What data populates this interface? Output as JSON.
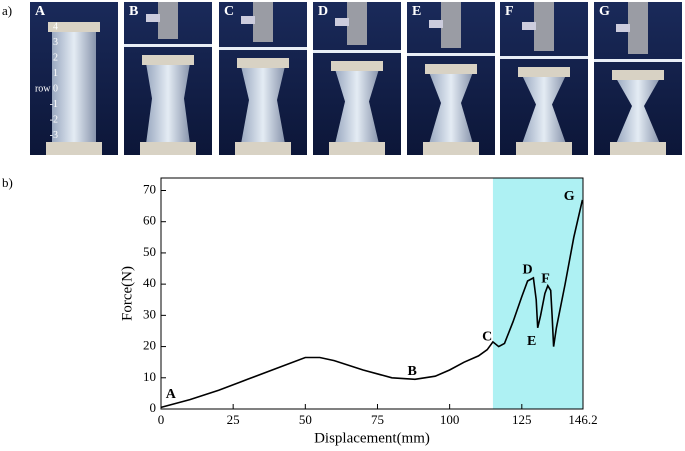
{
  "photos": {
    "label": "a)",
    "panels": [
      "A",
      "B",
      "C",
      "D",
      "E",
      "F",
      "G"
    ],
    "row_labels": [
      "4",
      "3",
      "2",
      "1",
      "row 0",
      "-1",
      "-2",
      "-3"
    ]
  },
  "chart_data": {
    "type": "line",
    "label": "b)",
    "xlabel": "Displacement(mm)",
    "ylabel": "Force(N)",
    "x": [
      0,
      10,
      20,
      30,
      40,
      50,
      55,
      60,
      70,
      80,
      88,
      95,
      100,
      105,
      110,
      113,
      115,
      117,
      119,
      122,
      125,
      127,
      129,
      130,
      130.5,
      131.5,
      133,
      134,
      135,
      135.5,
      136,
      137,
      140,
      143,
      146
    ],
    "values": [
      0.5,
      3,
      6,
      9.5,
      13,
      16.5,
      16.5,
      15.5,
      12.5,
      10,
      9.5,
      10.5,
      12.5,
      15,
      17,
      19,
      21.5,
      20,
      21,
      28,
      36,
      41,
      42,
      35,
      26,
      30,
      37,
      39.5,
      38,
      30,
      20,
      26,
      40,
      55,
      67
    ],
    "color": "#000000",
    "xlim": [
      0,
      146.2
    ],
    "ylim": [
      0,
      74
    ],
    "xticks": [
      0,
      25,
      50,
      75,
      100,
      125,
      146.2
    ],
    "yticks": [
      0,
      10,
      20,
      30,
      40,
      50,
      60,
      70
    ],
    "highlight_range": [
      115,
      146.2
    ],
    "highlight_color": "#aef1f3",
    "annotations": [
      {
        "text": "A",
        "x": 3.4,
        "y": 4.5
      },
      {
        "text": "B",
        "x": 87,
        "y": 12
      },
      {
        "text": "C",
        "x": 113,
        "y": 23
      },
      {
        "text": "D",
        "x": 127,
        "y": 44.5
      },
      {
        "text": "E",
        "x": 128.4,
        "y": 21.5
      },
      {
        "text": "F",
        "x": 133.2,
        "y": 41.5
      },
      {
        "text": "G",
        "x": 141.4,
        "y": 68
      }
    ]
  }
}
